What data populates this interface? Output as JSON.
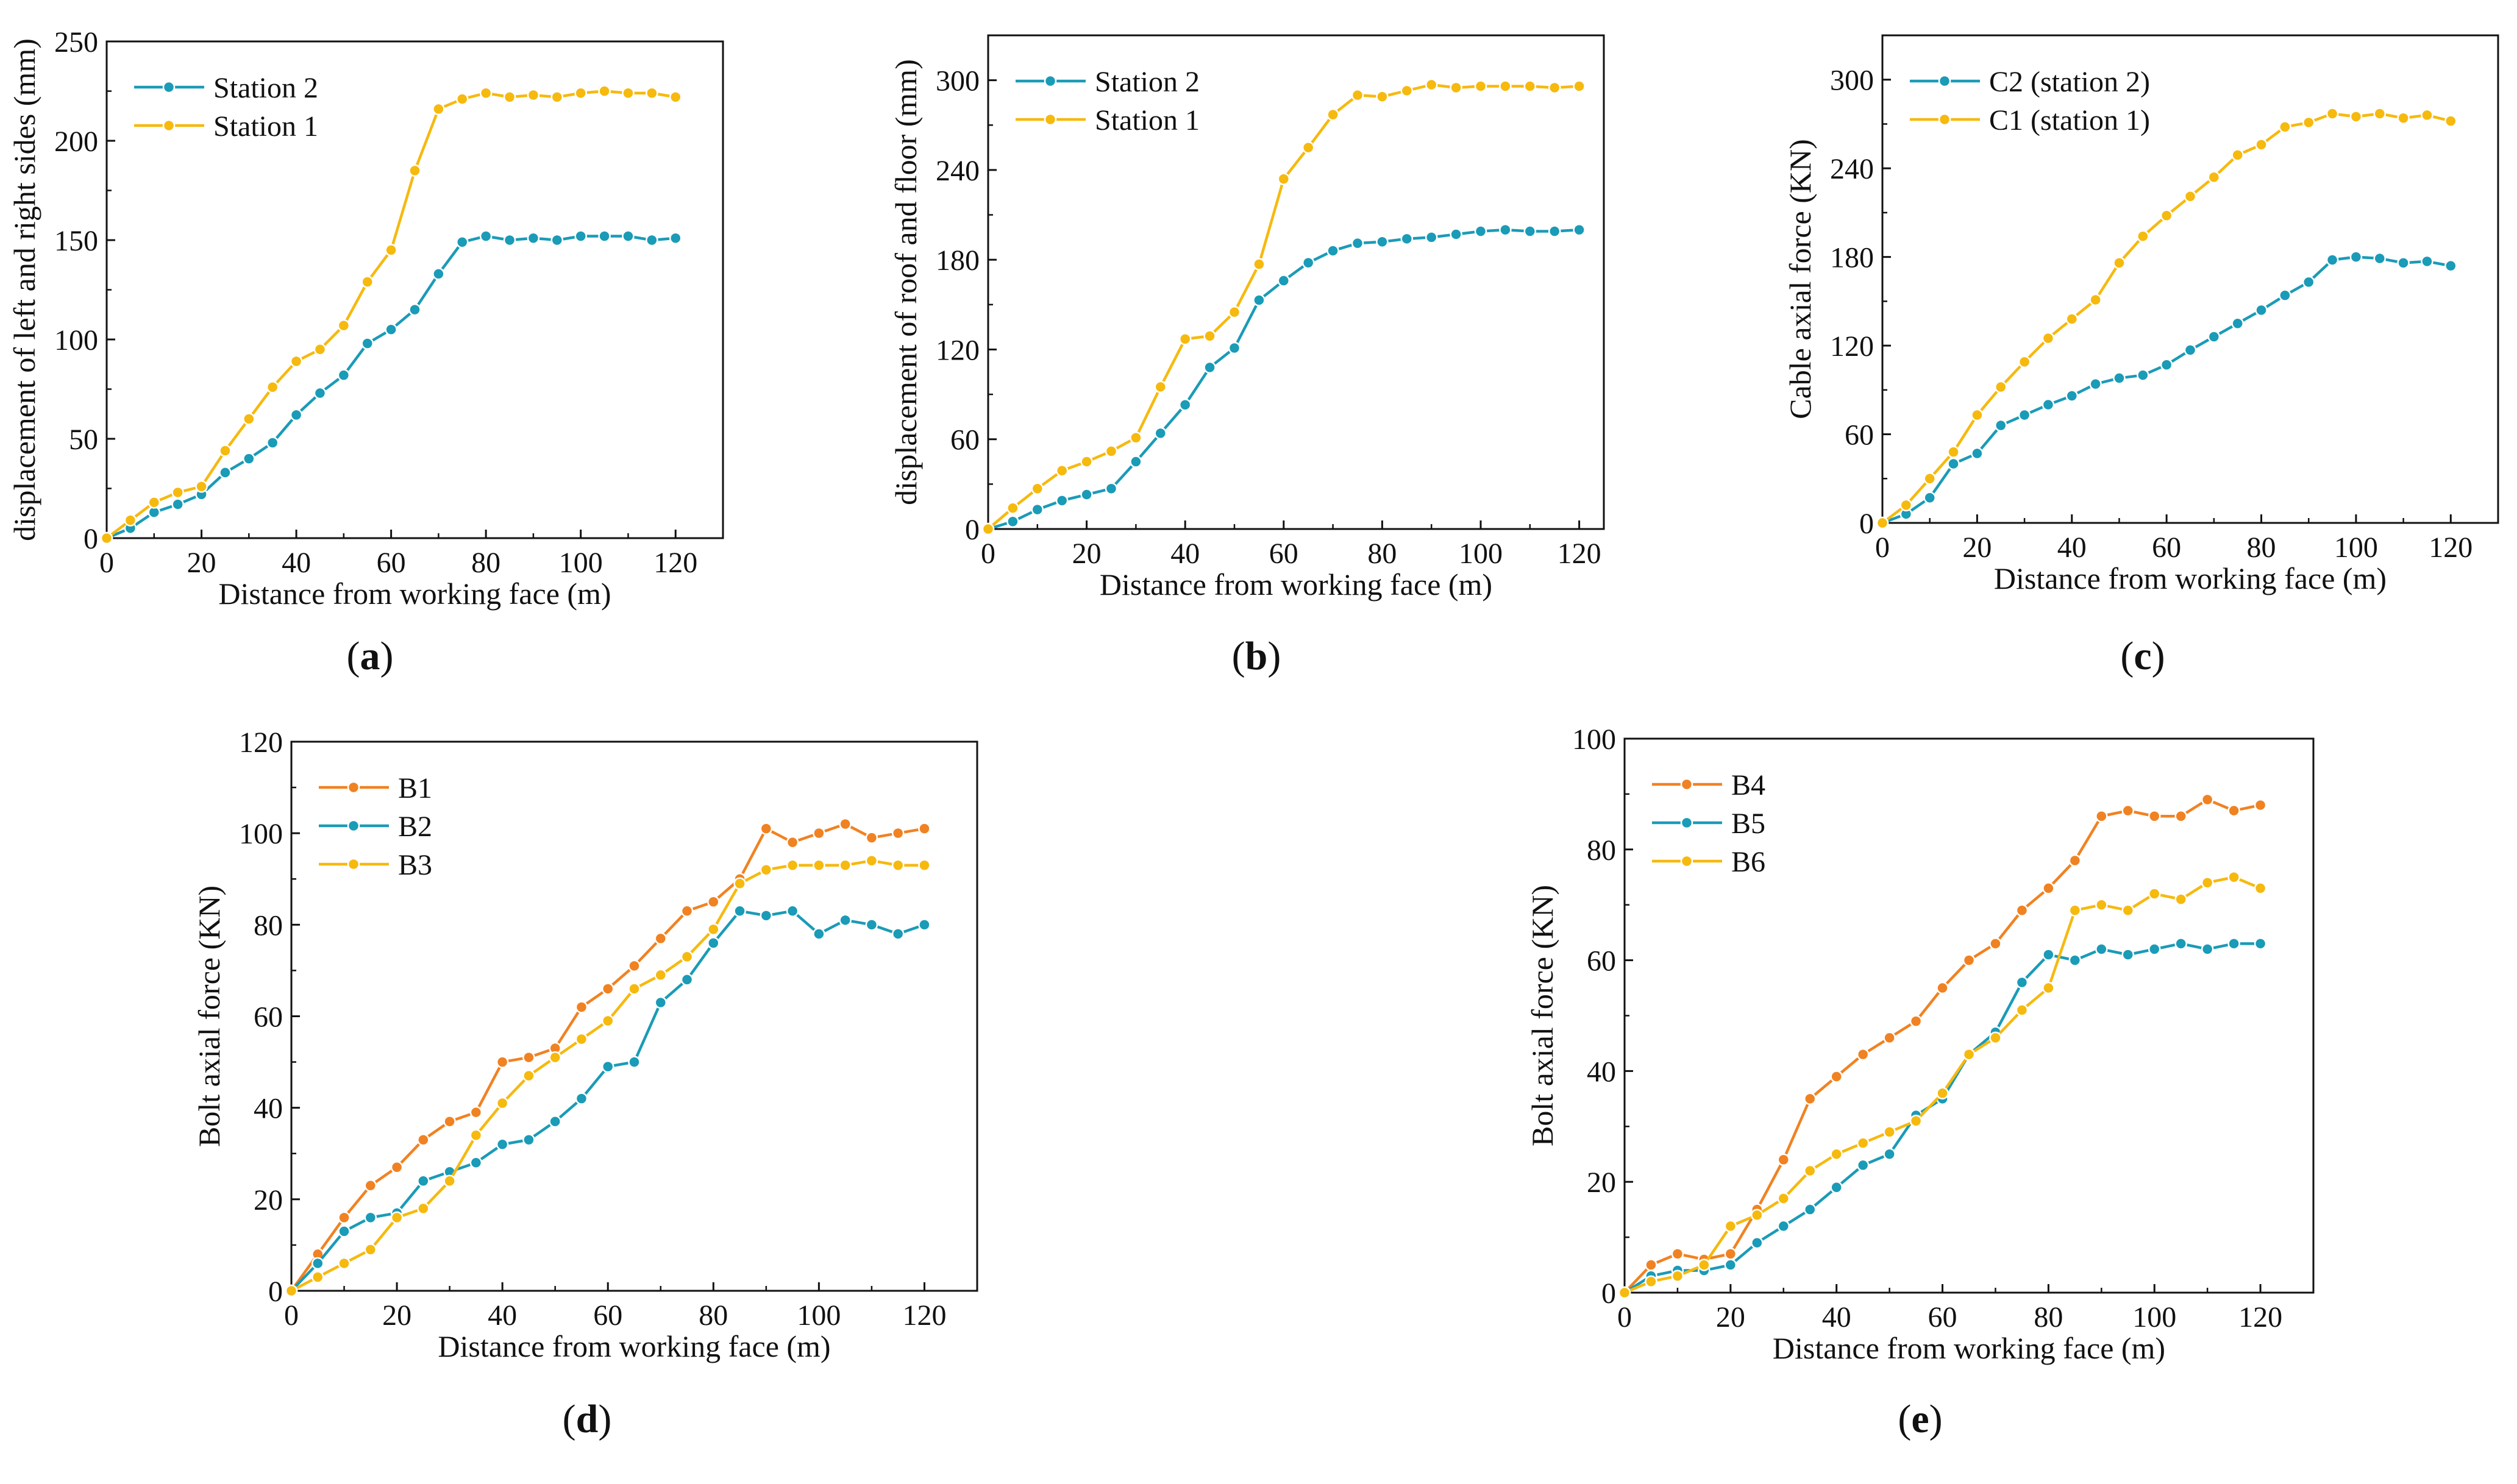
{
  "chart_data": [
    {
      "id": "a",
      "type": "line",
      "panel_label": "(a)",
      "panel_letter": "a",
      "xlabel": "Distance from working face (m)",
      "ylabel": "displacement of left and right sides (mm)",
      "xlim": [
        0,
        130
      ],
      "ylim": [
        0,
        250
      ],
      "xticks": [
        0,
        20,
        40,
        60,
        80,
        100,
        120
      ],
      "yticks": [
        0,
        50,
        100,
        150,
        200,
        250
      ],
      "legend_position": "top-left",
      "x": [
        0,
        5,
        10,
        15,
        20,
        25,
        30,
        35,
        40,
        45,
        50,
        55,
        60,
        65,
        70,
        75,
        80,
        85,
        90,
        95,
        100,
        105,
        110,
        115,
        120
      ],
      "series": [
        {
          "name": "Station 2",
          "color": "#1A9BB7",
          "values": [
            0,
            5,
            13,
            17,
            22,
            33,
            40,
            48,
            62,
            73,
            82,
            98,
            105,
            115,
            133,
            149,
            152,
            150,
            151,
            150,
            152,
            152,
            152,
            150,
            151
          ]
        },
        {
          "name": "Station 1",
          "color": "#F6B90E",
          "values": [
            0,
            9,
            18,
            23,
            26,
            44,
            60,
            76,
            89,
            95,
            107,
            129,
            145,
            185,
            216,
            221,
            224,
            222,
            223,
            222,
            224,
            225,
            224,
            224,
            222
          ]
        }
      ]
    },
    {
      "id": "b",
      "type": "line",
      "panel_label": "(b)",
      "panel_letter": "b",
      "xlabel": "Distance from working face (m)",
      "ylabel": "displacement of roof and floor (mm)",
      "xlim": [
        0,
        125
      ],
      "ylim": [
        0,
        330
      ],
      "xticks": [
        0,
        20,
        40,
        60,
        80,
        100,
        120
      ],
      "yticks": [
        0,
        60,
        120,
        180,
        240,
        300
      ],
      "legend_position": "top-left",
      "x": [
        0,
        5,
        10,
        15,
        20,
        25,
        30,
        35,
        40,
        45,
        50,
        55,
        60,
        65,
        70,
        75,
        80,
        85,
        90,
        95,
        100,
        105,
        110,
        115,
        120
      ],
      "series": [
        {
          "name": "Station 2",
          "color": "#1A9BB7",
          "values": [
            0,
            5,
            13,
            19,
            23,
            27,
            45,
            64,
            83,
            108,
            121,
            153,
            166,
            178,
            186,
            191,
            192,
            194,
            195,
            197,
            199,
            200,
            199,
            199,
            200
          ]
        },
        {
          "name": "Station 1",
          "color": "#F6B90E",
          "values": [
            0,
            14,
            27,
            39,
            45,
            52,
            61,
            95,
            127,
            129,
            145,
            177,
            234,
            255,
            277,
            290,
            289,
            293,
            297,
            295,
            296,
            296,
            296,
            295,
            296
          ]
        }
      ]
    },
    {
      "id": "c",
      "type": "line",
      "panel_label": "(c)",
      "panel_letter": "c",
      "xlabel": "Distance from working face (m)",
      "ylabel": "Cable axial force (KN)",
      "xlim": [
        0,
        130
      ],
      "ylim": [
        0,
        330
      ],
      "xticks": [
        0,
        20,
        40,
        60,
        80,
        100,
        120
      ],
      "yticks": [
        0,
        60,
        120,
        180,
        240,
        300
      ],
      "legend_position": "top-left",
      "x": [
        0,
        5,
        10,
        15,
        20,
        25,
        30,
        35,
        40,
        45,
        50,
        55,
        60,
        65,
        70,
        75,
        80,
        85,
        90,
        95,
        100,
        105,
        110,
        115,
        120
      ],
      "series": [
        {
          "name": "C2 (station 2)",
          "color": "#1A9BB7",
          "values": [
            0,
            6,
            17,
            40,
            47,
            66,
            73,
            80,
            86,
            94,
            98,
            100,
            107,
            117,
            126,
            135,
            144,
            154,
            163,
            178,
            180,
            179,
            176,
            177,
            174
          ]
        },
        {
          "name": "C1 (station 1)",
          "color": "#F6B90E",
          "values": [
            0,
            12,
            30,
            48,
            73,
            92,
            109,
            125,
            138,
            151,
            176,
            194,
            208,
            221,
            234,
            249,
            256,
            268,
            271,
            277,
            275,
            277,
            274,
            276,
            272
          ]
        }
      ]
    },
    {
      "id": "d",
      "type": "line",
      "panel_label": "(d)",
      "panel_letter": "d",
      "xlabel": "Distance from working face (m)",
      "ylabel": "Bolt axial force (KN)",
      "xlim": [
        0,
        130
      ],
      "ylim": [
        0,
        120
      ],
      "xticks": [
        0,
        20,
        40,
        60,
        80,
        100,
        120
      ],
      "yticks": [
        0,
        20,
        40,
        60,
        80,
        100,
        120
      ],
      "legend_position": "top-left",
      "x": [
        0,
        5,
        10,
        15,
        20,
        25,
        30,
        35,
        40,
        45,
        50,
        55,
        60,
        65,
        70,
        75,
        80,
        85,
        90,
        95,
        100,
        105,
        110,
        115,
        120
      ],
      "series": [
        {
          "name": "B1",
          "color": "#F08222",
          "values": [
            0,
            8,
            16,
            23,
            27,
            33,
            37,
            39,
            50,
            51,
            53,
            62,
            66,
            71,
            77,
            83,
            85,
            90,
            101,
            98,
            100,
            102,
            99,
            100,
            101
          ]
        },
        {
          "name": "B2",
          "color": "#1A9BB7",
          "values": [
            0,
            6,
            13,
            16,
            17,
            24,
            26,
            28,
            32,
            33,
            37,
            42,
            49,
            50,
            63,
            68,
            76,
            83,
            82,
            83,
            78,
            81,
            80,
            78,
            80
          ]
        },
        {
          "name": "B3",
          "color": "#F6B90E",
          "values": [
            0,
            3,
            6,
            9,
            16,
            18,
            24,
            34,
            41,
            47,
            51,
            55,
            59,
            66,
            69,
            73,
            79,
            89,
            92,
            93,
            93,
            93,
            94,
            93,
            93
          ]
        }
      ]
    },
    {
      "id": "e",
      "type": "line",
      "panel_label": "(e)",
      "panel_letter": "e",
      "xlabel": "Distance from working face (m)",
      "ylabel": "Bolt axial force (KN)",
      "xlim": [
        0,
        130
      ],
      "ylim": [
        0,
        100
      ],
      "xticks": [
        0,
        20,
        40,
        60,
        80,
        100,
        120
      ],
      "yticks": [
        0,
        20,
        40,
        60,
        80,
        100
      ],
      "legend_position": "top-left",
      "x": [
        0,
        5,
        10,
        15,
        20,
        25,
        30,
        35,
        40,
        45,
        50,
        55,
        60,
        65,
        70,
        75,
        80,
        85,
        90,
        95,
        100,
        105,
        110,
        115,
        120
      ],
      "series": [
        {
          "name": "B4",
          "color": "#F08222",
          "values": [
            0,
            5,
            7,
            6,
            7,
            15,
            24,
            35,
            39,
            43,
            46,
            49,
            55,
            60,
            63,
            69,
            73,
            78,
            86,
            87,
            86,
            86,
            89,
            87,
            88
          ]
        },
        {
          "name": "B5",
          "color": "#1A9BB7",
          "values": [
            0,
            3,
            4,
            4,
            5,
            9,
            12,
            15,
            19,
            23,
            25,
            32,
            35,
            43,
            47,
            56,
            61,
            60,
            62,
            61,
            62,
            63,
            62,
            63,
            63
          ]
        },
        {
          "name": "B6",
          "color": "#F6B90E",
          "values": [
            0,
            2,
            3,
            5,
            12,
            14,
            17,
            22,
            25,
            27,
            29,
            31,
            36,
            43,
            46,
            51,
            55,
            69,
            70,
            69,
            72,
            71,
            74,
            75,
            73
          ]
        }
      ]
    }
  ]
}
